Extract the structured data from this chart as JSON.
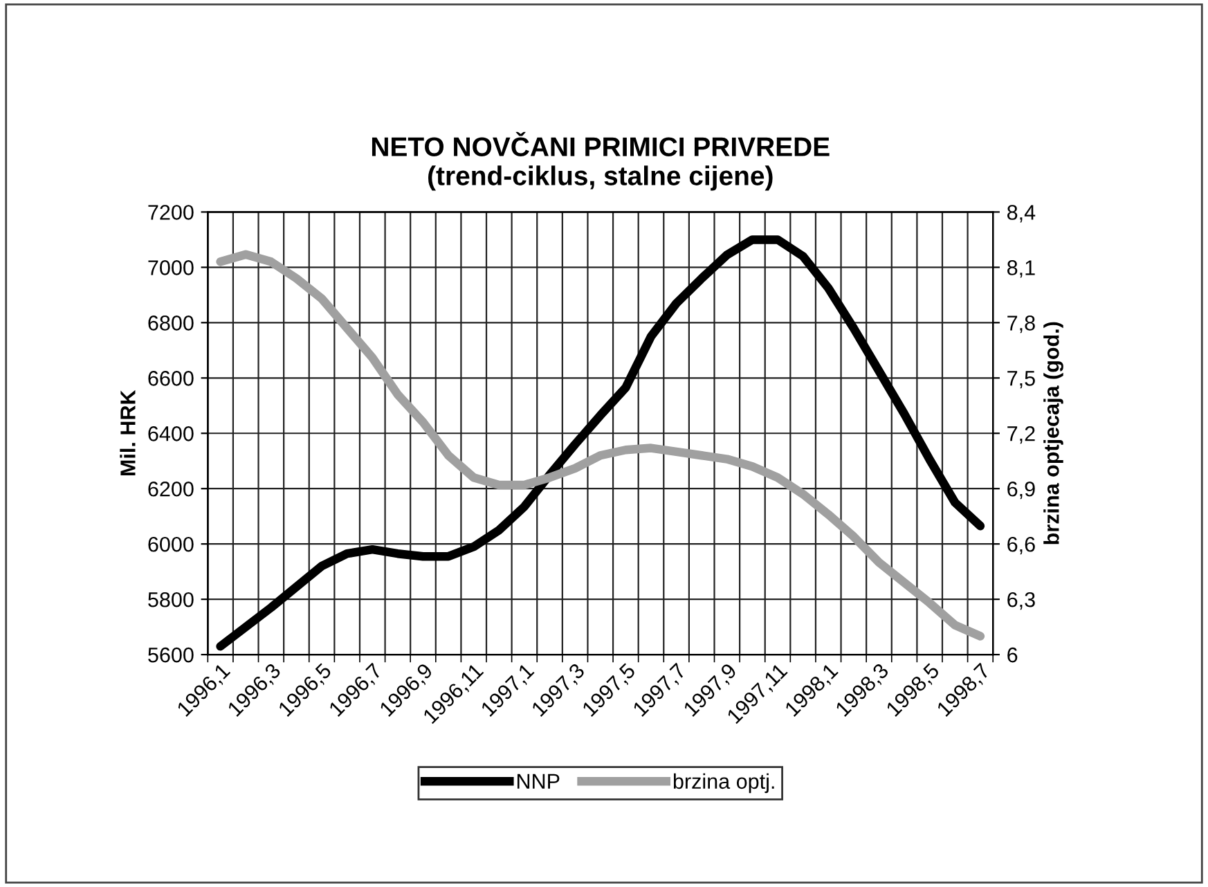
{
  "chart_data": {
    "type": "line",
    "title": "NETO NOVČANI PRIMICI PRIVREDE\n(trend-ciklus, stalne cijene)",
    "categories": [
      "1996,1",
      null,
      "1996,3",
      null,
      "1996,5",
      null,
      "1996,7",
      null,
      "1996,9",
      null,
      "1996,11",
      null,
      "1997,1",
      null,
      "1997,3",
      null,
      "1997,5",
      null,
      "1997,7",
      null,
      "1997,9",
      null,
      "1997,11",
      null,
      "1998,1",
      null,
      "1998,3",
      null,
      "1998,5",
      null,
      "1998,7"
    ],
    "series": [
      {
        "name": "NNP",
        "color": "#000000",
        "values": [
          5630,
          5700,
          5770,
          5845,
          5920,
          5965,
          5980,
          5965,
          5955,
          5955,
          5990,
          6050,
          6135,
          6250,
          6360,
          6465,
          6565,
          6750,
          6870,
          6960,
          7045,
          7100,
          7100,
          7040,
          6925,
          6780,
          6625,
          6470,
          6305,
          6150,
          6065
        ]
      },
      {
        "name": "brzina optj.",
        "color": "#a0a0a0",
        "axis": "y2",
        "values": [
          8.13,
          8.17,
          8.13,
          8.04,
          7.93,
          7.77,
          7.61,
          7.41,
          7.26,
          7.08,
          6.96,
          6.92,
          6.92,
          6.96,
          7.01,
          7.08,
          7.11,
          7.12,
          7.1,
          7.08,
          7.06,
          7.02,
          6.96,
          6.87,
          6.76,
          6.64,
          6.5,
          6.39,
          6.28,
          6.16,
          6.1
        ]
      }
    ],
    "ylabel": "Mil. HRK",
    "y2label": "brzina optjecaja (god.)",
    "ylim": [
      5600,
      7200
    ],
    "yticks": [
      5600,
      5800,
      6000,
      6200,
      6400,
      6600,
      6800,
      7000,
      7200
    ],
    "y2lim": [
      6,
      8.4
    ],
    "y2ticks": [
      6,
      {
        "value": 6.3,
        "label": "6,3"
      },
      {
        "value": 6.6,
        "label": "6,6"
      },
      {
        "value": 6.9,
        "label": "6,9"
      },
      {
        "value": 7.2,
        "label": "7,2"
      },
      {
        "value": 7.5,
        "label": "7,5"
      },
      {
        "value": 7.8,
        "label": "7,8"
      },
      {
        "value": 8.1,
        "label": "8,1"
      },
      {
        "value": 8.4,
        "label": "8,4"
      }
    ],
    "grid": true,
    "legend": "bottom",
    "marker": "none",
    "line_style": "solid"
  }
}
